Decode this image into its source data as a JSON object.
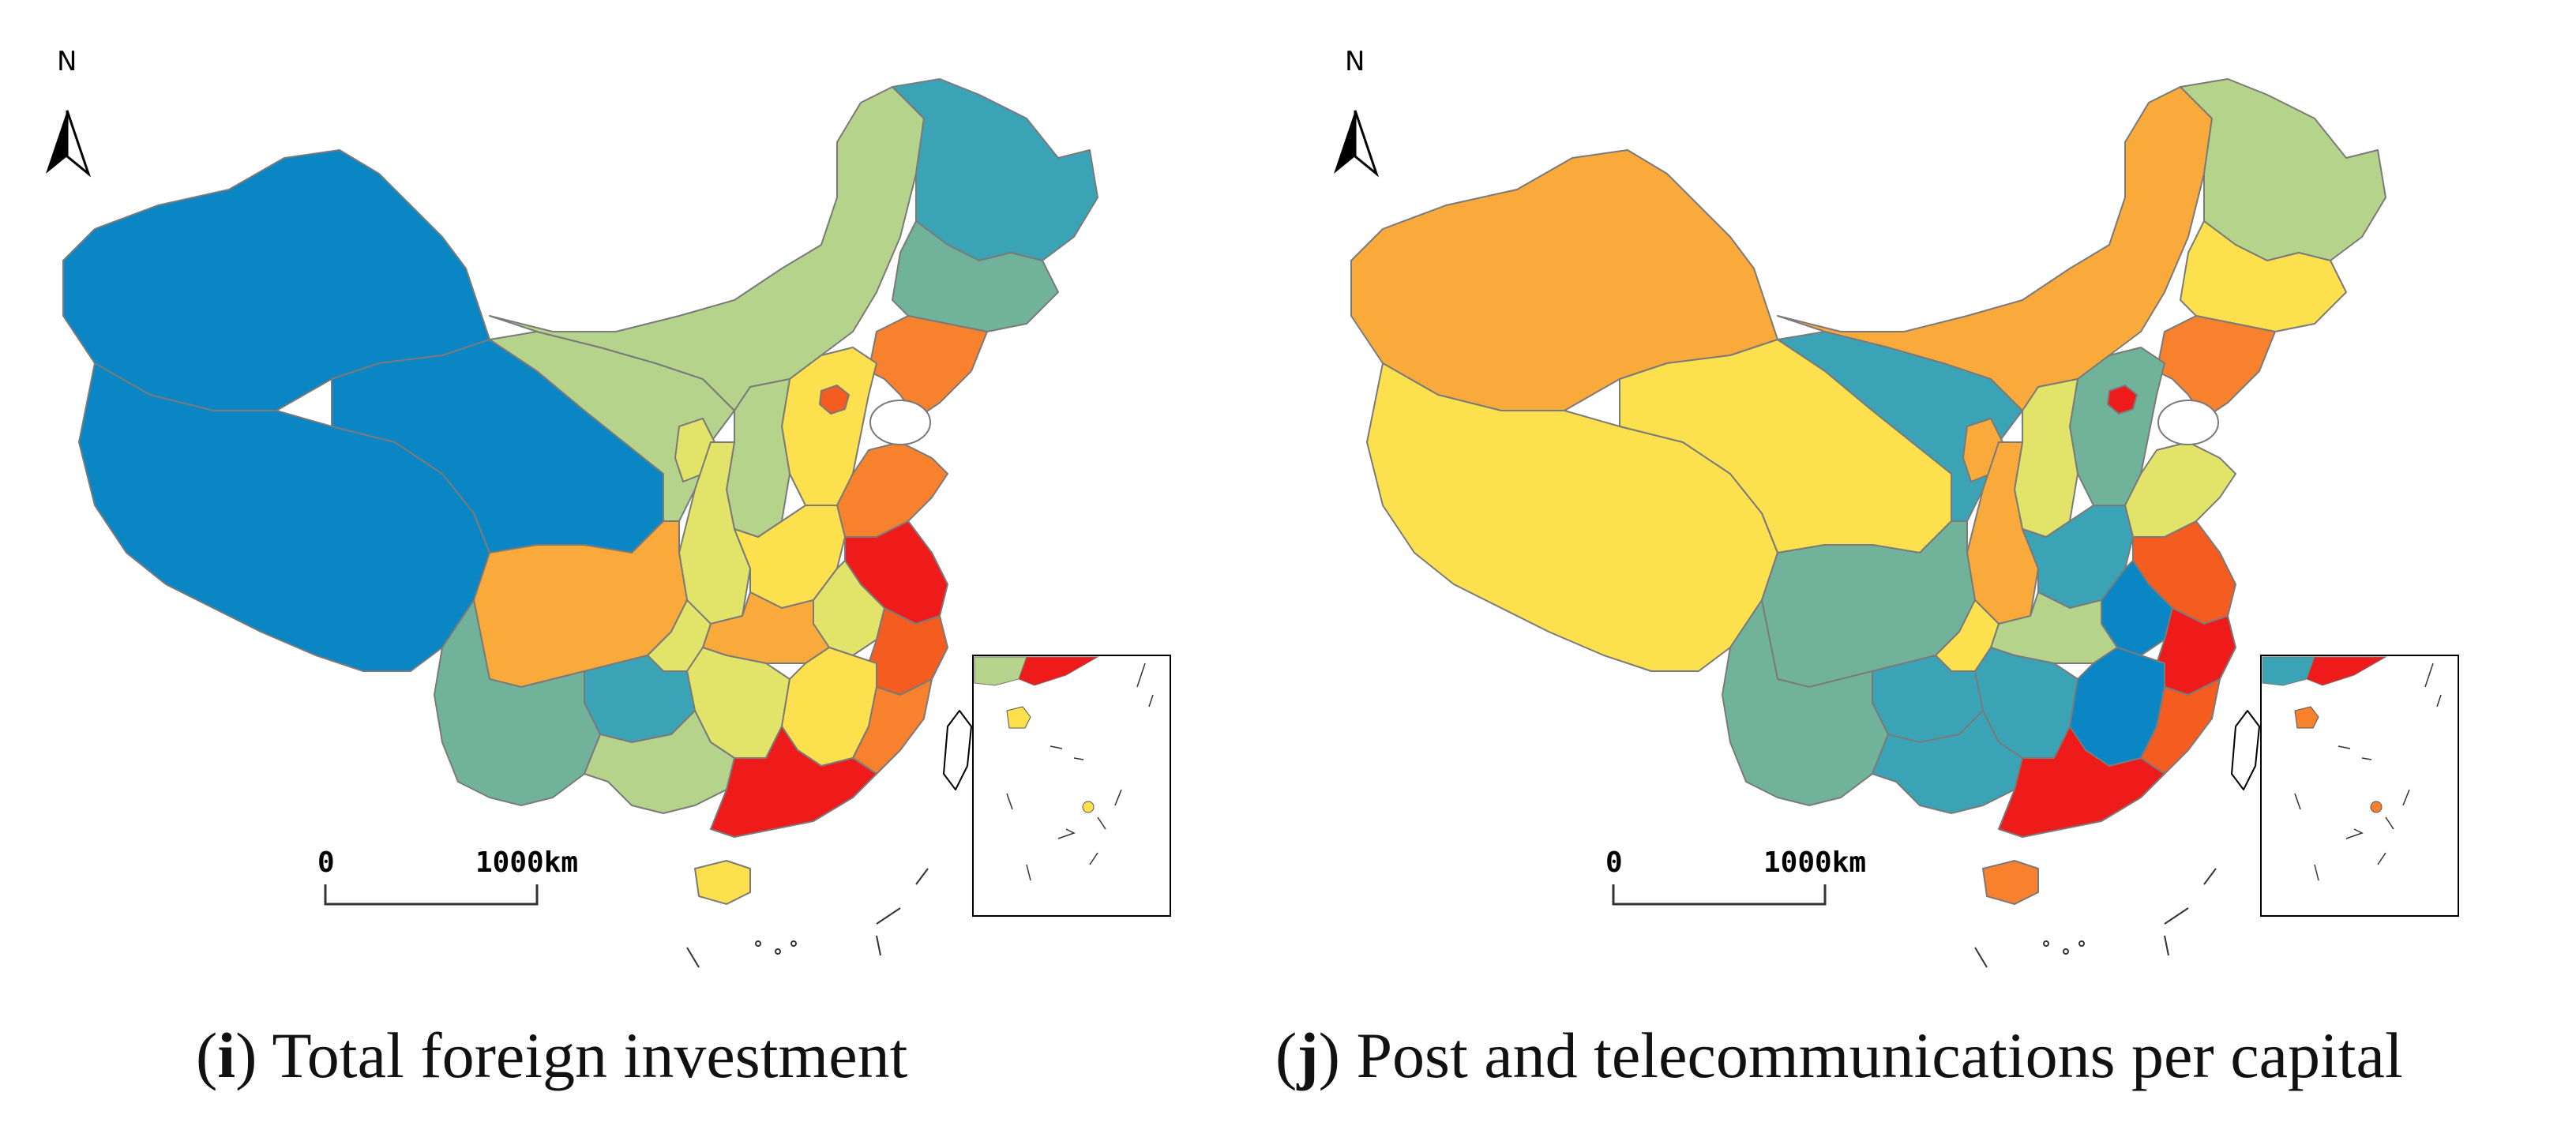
{
  "colors": {
    "c_darkblue": "#0a86c4",
    "c_teal": "#3aa4b6",
    "c_seagreen": "#70b39a",
    "c_lightgreen": "#b5d38a",
    "c_paleyellow": "#e2e46a",
    "c_yellow": "#fde04e",
    "c_orange": "#f9aa3a",
    "c_orangered": "#f7812c",
    "c_redorange": "#f45c20",
    "c_red": "#ef1a1a"
  },
  "panels": [
    {
      "north": "N",
      "scale_zero": "0",
      "scale_max": "1000km",
      "caption_letter": "i",
      "caption_text": "Total foreign investment",
      "fills": {
        "xinjiang": "c_darkblue",
        "tibet": "c_darkblue",
        "qinghai": "c_darkblue",
        "gansu": "c_lightgreen",
        "innermongolia": "c_lightgreen",
        "heilongjiang": "c_teal",
        "jilin": "c_seagreen",
        "liaoning": "c_orangered",
        "beijing": "c_redorange",
        "hebei": "c_yellow",
        "shanxi": "c_lightgreen",
        "shandong": "c_orangered",
        "ningxia": "c_paleyellow",
        "shaanxi": "c_paleyellow",
        "henan": "c_yellow",
        "jiangsu": "c_red",
        "anhui": "c_paleyellow",
        "hubei": "c_orange",
        "sichuan": "c_orange",
        "chongqing": "c_paleyellow",
        "zhejiang": "c_redorange",
        "hunan": "c_paleyellow",
        "jiangxi": "c_yellow",
        "fujian": "c_orangered",
        "guizhou": "c_teal",
        "yunnan": "c_seagreen",
        "guangxi": "c_lightgreen",
        "guangdong": "c_red",
        "hainan": "c_yellow",
        "taiwan": "none"
      },
      "inset": {
        "mainland": "c_lightgreen",
        "coast": "c_red",
        "island": "c_yellow",
        "dot": "c_yellow"
      }
    },
    {
      "north": "N",
      "scale_zero": "0",
      "scale_max": "1000km",
      "caption_letter": "j",
      "caption_text": "Post and telecommunications per capital",
      "fills": {
        "xinjiang": "c_orange",
        "tibet": "c_yellow",
        "qinghai": "c_yellow",
        "gansu": "c_teal",
        "innermongolia": "c_orange",
        "heilongjiang": "c_lightgreen",
        "jilin": "c_yellow",
        "liaoning": "c_orangered",
        "beijing": "c_red",
        "hebei": "c_seagreen",
        "shanxi": "c_paleyellow",
        "shandong": "c_paleyellow",
        "ningxia": "c_orange",
        "shaanxi": "c_orange",
        "henan": "c_teal",
        "jiangsu": "c_redorange",
        "anhui": "c_darkblue",
        "hubei": "c_lightgreen",
        "sichuan": "c_seagreen",
        "chongqing": "c_yellow",
        "zhejiang": "c_red",
        "hunan": "c_teal",
        "jiangxi": "c_darkblue",
        "fujian": "c_redorange",
        "guizhou": "c_teal",
        "yunnan": "c_seagreen",
        "guangxi": "c_teal",
        "guangdong": "c_red",
        "hainan": "c_orangered",
        "taiwan": "none"
      },
      "inset": {
        "mainland": "c_teal",
        "coast": "c_red",
        "island": "c_orangered",
        "dot": "c_orangered"
      }
    }
  ]
}
